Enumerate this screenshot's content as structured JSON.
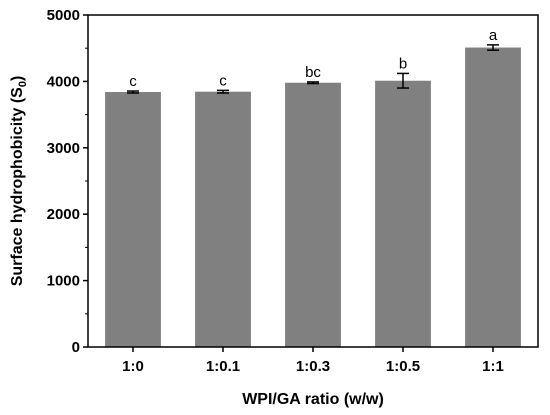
{
  "chart_data": {
    "type": "bar",
    "title": "",
    "xlabel": "WPI/GA ratio (w/w)",
    "ylabel": "Surface hydrophobicity (S",
    "ylabel_subscript": "0",
    "ylabel_suffix": ")",
    "categories": [
      "1:0",
      "1:0.1",
      "1:0.3",
      "1:0.5",
      "1:1"
    ],
    "values": [
      3840,
      3845,
      3980,
      4010,
      4510
    ],
    "errors": [
      15,
      20,
      12,
      110,
      40
    ],
    "significance": [
      "c",
      "c",
      "bc",
      "b",
      "a"
    ],
    "ylim": [
      0,
      5000
    ],
    "yticks": [
      "0",
      "1000",
      "2000",
      "3000",
      "4000",
      "5000"
    ],
    "grid": false,
    "bar_color": "#808080"
  }
}
